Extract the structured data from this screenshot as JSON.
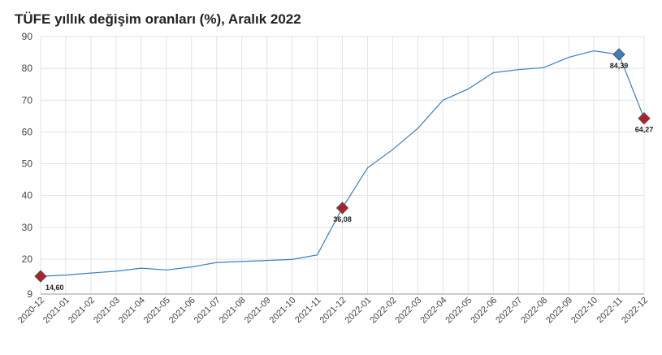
{
  "chart_data": {
    "type": "line",
    "title": "TÜFE yıllık değişim oranları (%), Aralık 2022",
    "xlabel": "",
    "ylabel": "",
    "ylim": [
      9,
      90
    ],
    "yticks": [
      9,
      20,
      30,
      40,
      50,
      60,
      70,
      80,
      90
    ],
    "grid": true,
    "categories": [
      "2020-12",
      "2021-01",
      "2021-02",
      "2021-03",
      "2021-04",
      "2021-05",
      "2021-06",
      "2021-07",
      "2021-08",
      "2021-09",
      "2021-10",
      "2021-11",
      "2021-12",
      "2022-01",
      "2022-02",
      "2022-03",
      "2022-04",
      "2022-05",
      "2022-06",
      "2022-07",
      "2022-08",
      "2022-09",
      "2022-10",
      "2022-11",
      "2022-12"
    ],
    "series": [
      {
        "color": "#3a7fc0",
        "values": [
          14.6,
          14.97,
          15.61,
          16.19,
          17.14,
          16.59,
          17.53,
          18.95,
          19.25,
          19.58,
          19.89,
          21.31,
          36.08,
          48.69,
          54.44,
          61.14,
          69.97,
          73.5,
          78.62,
          79.6,
          80.21,
          83.45,
          85.51,
          84.39,
          64.27
        ]
      }
    ],
    "markers": [
      {
        "index": 0,
        "label": "14,60",
        "color": "#b0202a"
      },
      {
        "index": 12,
        "label": "36,08",
        "color": "#b0202a"
      },
      {
        "index": 23,
        "label": "84,39",
        "color": "#3a7fc0"
      },
      {
        "index": 24,
        "label": "64,27",
        "color": "#b0202a"
      }
    ]
  }
}
